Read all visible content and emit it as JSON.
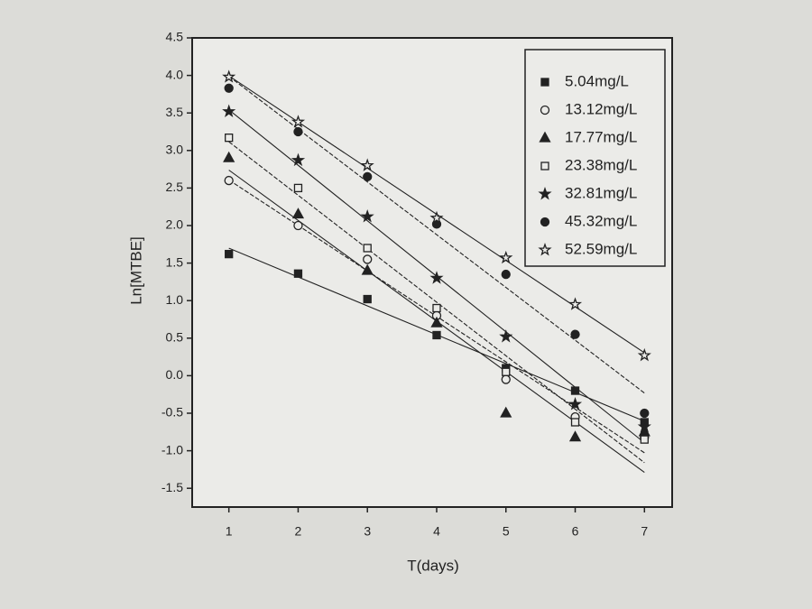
{
  "chart_data": {
    "type": "scatter",
    "x_label": "T(days)",
    "y_label": "Ln[MTBE]",
    "x": [
      1,
      2,
      3,
      4,
      5,
      6,
      7
    ],
    "xlim": [
      0.47,
      7.4
    ],
    "xticks": [
      1,
      2,
      3,
      4,
      5,
      6,
      7
    ],
    "ylim": [
      -1.75,
      4.5
    ],
    "yticks": [
      4.5,
      {
        "value": 4,
        "label": "4.0"
      },
      3.5,
      {
        "value": 3,
        "label": "3.0"
      },
      2.5,
      {
        "value": 2,
        "label": "2.0"
      },
      1.5,
      {
        "value": 1,
        "label": "1.0"
      },
      0.5,
      {
        "value": 0,
        "label": "0.0"
      },
      -0.5,
      {
        "value": -1,
        "label": "-1.0"
      },
      -1.5
    ],
    "fit_lines": true,
    "legend": "upper right",
    "series": [
      {
        "name": "5.04mg/L",
        "color": "#222222",
        "marker": "square-filled",
        "values": [
          1.62,
          1.36,
          1.02,
          0.54,
          0.1,
          -0.2,
          -0.62
        ]
      },
      {
        "name": "13.12mg/L",
        "color": "#222222",
        "marker": "circle-open",
        "values": [
          2.6,
          2.0,
          1.55,
          0.8,
          -0.05,
          -0.55,
          -0.82
        ]
      },
      {
        "name": "17.77mg/L",
        "color": "#222222",
        "marker": "triangle-filled",
        "values": [
          2.9,
          2.15,
          1.4,
          0.7,
          -0.5,
          -0.82,
          -0.75
        ]
      },
      {
        "name": "23.38mg/L",
        "color": "#222222",
        "marker": "square-open",
        "values": [
          3.17,
          2.5,
          1.7,
          0.9,
          0.05,
          -0.62,
          -0.85
        ]
      },
      {
        "name": "32.81mg/L",
        "color": "#222222",
        "marker": "star-filled",
        "values": [
          3.52,
          2.87,
          2.12,
          1.3,
          0.52,
          -0.38,
          -0.68
        ]
      },
      {
        "name": "45.32mg/L",
        "color": "#222222",
        "marker": "circle-filled",
        "values": [
          3.83,
          3.25,
          2.65,
          2.02,
          1.35,
          0.55,
          -0.5
        ]
      },
      {
        "name": "52.59mg/L",
        "color": "#222222",
        "marker": "star-open",
        "values": [
          3.98,
          3.38,
          2.8,
          2.1,
          1.57,
          0.95,
          0.27
        ]
      }
    ]
  }
}
